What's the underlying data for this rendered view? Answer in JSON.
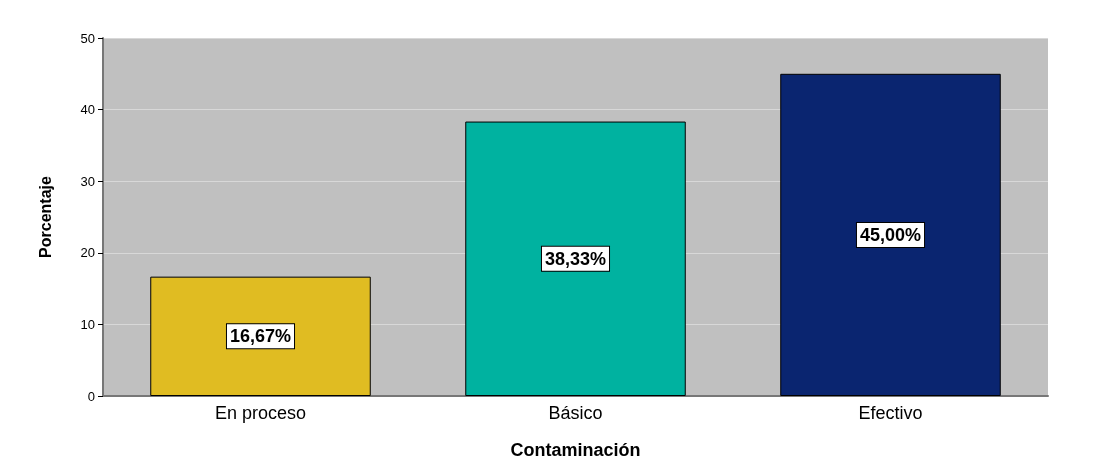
{
  "chart_data": {
    "type": "bar",
    "xlabel": "Contaminación",
    "ylabel": "Porcentaje",
    "categories": [
      "En proceso",
      "Básico",
      "Efectivo"
    ],
    "values": [
      16.67,
      38.33,
      45.0
    ],
    "colors": [
      "#e0bc22",
      "#00b2a0",
      "#0a2570"
    ],
    "value_labels": [
      "16,67%",
      "38,33%",
      "45,00%"
    ],
    "ylim": [
      0,
      50
    ],
    "yticks": [
      0,
      10,
      20,
      30,
      40,
      50
    ],
    "grid": "y"
  }
}
